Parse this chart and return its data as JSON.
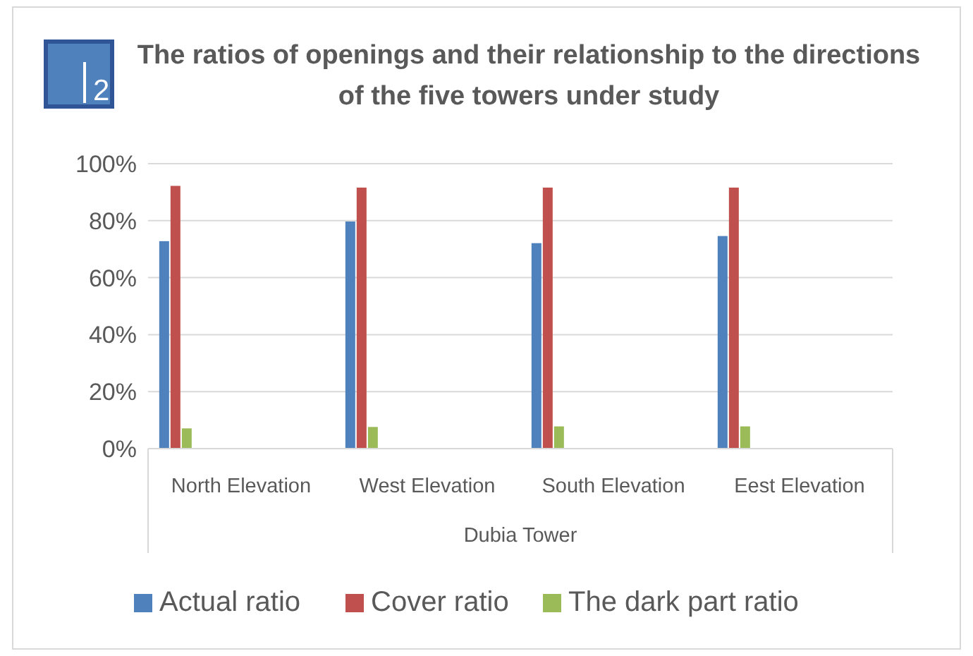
{
  "chart_data": {
    "type": "bar",
    "title": "The ratios of openings and their relationship to the directions of the five towers under study",
    "xlabel": "Dubia Tower",
    "annotations": [
      "2"
    ],
    "categories": [
      "North Elevation",
      "West Elevation",
      "South Elevation",
      "Eest Elevation"
    ],
    "series": [
      {
        "name": "Actual ratio",
        "color": "#4f81bd",
        "values": [
          0.728,
          0.797,
          0.721,
          0.746
        ]
      },
      {
        "name": "Cover ratio",
        "color": "#c0504d",
        "values": [
          0.922,
          0.916,
          0.916,
          0.916
        ]
      },
      {
        "name": "The dark part ratio",
        "color": "#9bbb59",
        "values": [
          0.071,
          0.076,
          0.078,
          0.078
        ]
      }
    ],
    "ylim": [
      0,
      1
    ],
    "yticks": [
      {
        "value": 0,
        "label": "0%"
      },
      {
        "value": 0.2,
        "label": "20%"
      },
      {
        "value": 0.4,
        "label": "40%"
      },
      {
        "value": 0.6,
        "label": "60%"
      },
      {
        "value": 0.8,
        "label": "80%"
      },
      {
        "value": 1,
        "label": "100%"
      }
    ],
    "grid": "y",
    "legend": "bottom"
  }
}
